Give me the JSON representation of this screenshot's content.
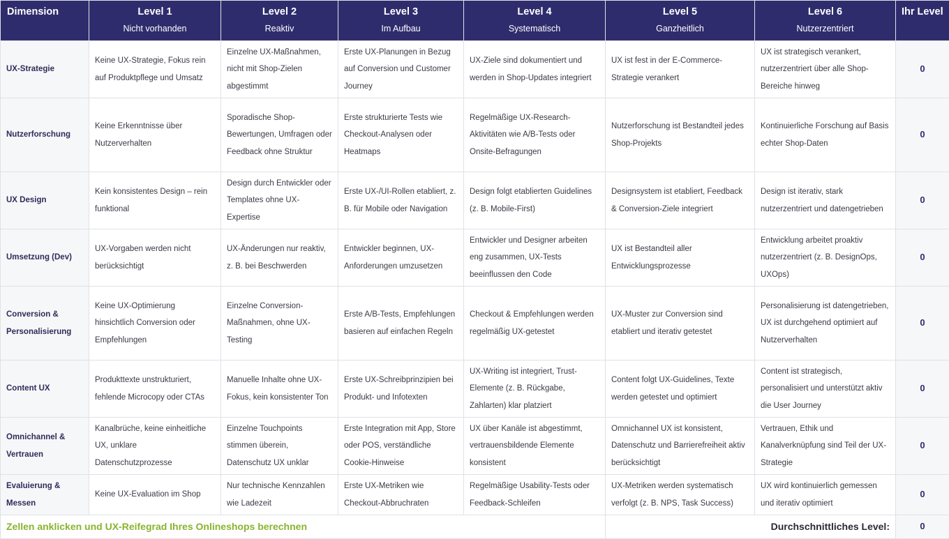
{
  "header": {
    "dimension": "Dimension",
    "ihr_level": "Ihr Level",
    "levels": [
      {
        "label": "Level 1",
        "sub": "Nicht vorhanden"
      },
      {
        "label": "Level 2",
        "sub": "Reaktiv"
      },
      {
        "label": "Level 3",
        "sub": "Im Aufbau"
      },
      {
        "label": "Level 4",
        "sub": "Systematisch"
      },
      {
        "label": "Level 5",
        "sub": "Ganzheitlich"
      },
      {
        "label": "Level 6",
        "sub": "Nutzerzentriert"
      }
    ]
  },
  "rows": [
    {
      "dim": "UX-Strategie",
      "level": "0",
      "cells": [
        "Keine UX-Strategie, Fokus rein auf Produktpflege und Umsatz",
        "Einzelne UX-Maßnahmen, nicht mit Shop-Zielen abgestimmt",
        "Erste UX-Planungen in Bezug auf Conversion und Customer Journey",
        "UX-Ziele sind dokumentiert und werden in Shop-Updates integriert",
        "UX ist fest in der E-Commerce-Strategie verankert",
        "UX ist strategisch verankert, nutzerzentriert über alle Shop-Bereiche hinweg"
      ]
    },
    {
      "dim": "Nutzerforschung",
      "level": "0",
      "cells": [
        "Keine Erkenntnisse über Nutzerverhalten",
        "Sporadische Shop-Bewertungen, Umfragen oder Feedback ohne Struktur",
        "Erste strukturierte Tests wie Checkout-Analysen oder Heatmaps",
        "Regelmäßige UX-Research-Aktivitäten wie A/B-Tests oder Onsite-Befragungen",
        "Nutzerforschung ist Bestandteil jedes Shop-Projekts",
        "Kontinuierliche Forschung auf Basis echter Shop-Daten"
      ]
    },
    {
      "dim": "UX Design",
      "level": "0",
      "cells": [
        "Kein konsistentes Design – rein funktional",
        "Design durch Entwickler oder Templates ohne UX-Expertise",
        "Erste UX-/UI-Rollen etabliert, z. B. für Mobile oder Navigation",
        "Design folgt etablierten Guidelines (z. B. Mobile-First)",
        "Designsystem ist etabliert, Feedback & Conversion-Ziele integriert",
        "Design ist iterativ, stark nutzerzentriert und datengetrieben"
      ]
    },
    {
      "dim": "Umsetzung (Dev)",
      "level": "0",
      "cells": [
        "UX-Vorgaben werden nicht berücksichtigt",
        "UX-Änderungen nur reaktiv, z. B. bei Beschwerden",
        "Entwickler beginnen, UX-Anforderungen umzusetzen",
        "Entwickler und Designer arbeiten eng zusammen, UX-Tests beeinflussen den Code",
        "UX ist Bestandteil aller Entwicklungsprozesse",
        "Entwicklung arbeitet proaktiv nutzerzentriert (z. B. DesignOps, UXOps)"
      ]
    },
    {
      "dim": "Conversion & Personalisierung",
      "level": "0",
      "cells": [
        "Keine UX-Optimierung hinsichtlich Conversion oder Empfehlungen",
        "Einzelne Conversion-Maßnahmen, ohne UX-Testing",
        "Erste A/B-Tests, Empfehlungen basieren auf einfachen Regeln",
        "Checkout & Empfehlungen werden regelmäßig UX-getestet",
        "UX-Muster zur Conversion sind etabliert und iterativ getestet",
        "Personalisierung ist datengetrieben, UX ist durchgehend optimiert auf Nutzerverhalten"
      ]
    },
    {
      "dim": "Content UX",
      "level": "0",
      "cells": [
        "Produkttexte unstrukturiert, fehlende Microcopy oder CTAs",
        "Manuelle Inhalte ohne UX-Fokus, kein konsistenter Ton",
        "Erste UX-Schreibprinzipien bei Produkt- und Infotexten",
        "UX-Writing ist integriert, Trust-Elemente (z. B. Rückgabe, Zahlarten) klar platziert",
        "Content folgt UX-Guidelines, Texte werden getestet und optimiert",
        "Content ist strategisch, personalisiert und unterstützt aktiv die User Journey"
      ]
    },
    {
      "dim": "Omnichannel & Vertrauen",
      "level": "0",
      "cells": [
        "Kanalbrüche, keine einheitliche UX, unklare Datenschutzprozesse",
        "Einzelne Touchpoints stimmen überein, Datenschutz UX unklar",
        "Erste Integration mit App, Store oder POS, verständliche Cookie-Hinweise",
        "UX über Kanäle ist abgestimmt, vertrauensbildende Elemente konsistent",
        "Omnichannel UX ist konsistent, Datenschutz und Barrierefreiheit aktiv berücksichtigt",
        "Vertrauen, Ethik und Kanalverknüpfung sind Teil der UX-Strategie"
      ]
    },
    {
      "dim": "Evaluierung & Messen",
      "level": "0",
      "cells": [
        "Keine UX-Evaluation im Shop",
        "Nur technische Kennzahlen wie Ladezeit",
        "Erste UX-Metriken wie Checkout-Abbruchraten",
        "Regelmäßige Usability-Tests oder Feedback-Schleifen",
        "UX-Metriken werden systematisch verfolgt (z. B. NPS, Task Success)",
        "UX wird kontinuierlich gemessen und iterativ optimiert"
      ]
    }
  ],
  "footer": {
    "cta": "Zellen anklicken und UX-Reifegrad Ihres Onlineshops berechnen",
    "avg_label": "Durchschnittliches Level:",
    "avg_value": "0"
  }
}
